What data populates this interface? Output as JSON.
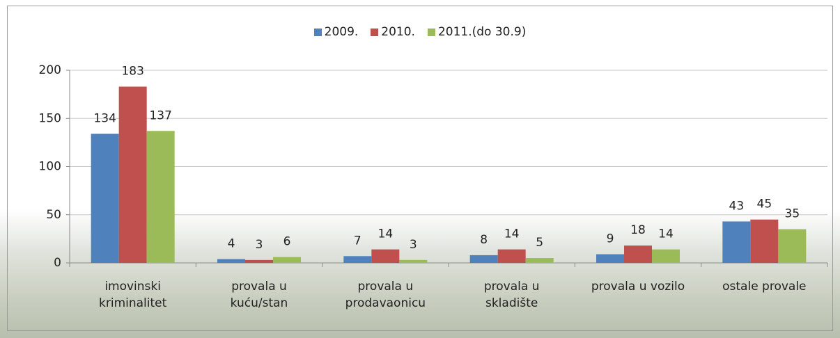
{
  "chart_data": {
    "type": "bar",
    "categories": [
      "imovinski kriminalitet",
      "provala u kuću/stan",
      "provala u prodavaonicu",
      "provala u skladište",
      "provala u vozilo",
      "ostale provale"
    ],
    "series": [
      {
        "name": "2009.",
        "color": "#4f81bd",
        "values": [
          134,
          4,
          7,
          8,
          9,
          43
        ]
      },
      {
        "name": "2010.",
        "color": "#c0504d",
        "values": [
          183,
          3,
          14,
          14,
          18,
          45
        ]
      },
      {
        "name": "2011.(do 30.9)",
        "color": "#9bbb59",
        "values": [
          137,
          6,
          3,
          5,
          14,
          35
        ]
      }
    ],
    "ylim": [
      0,
      200
    ],
    "yticks": [
      0,
      50,
      100,
      150,
      200
    ],
    "grid": true,
    "legend": "top"
  }
}
